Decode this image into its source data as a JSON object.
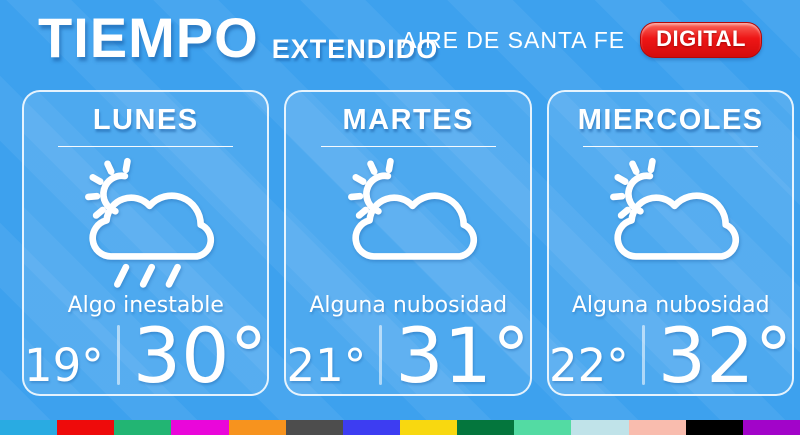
{
  "header": {
    "title": "TIEMPO",
    "subtitle": "EXTENDIDO",
    "brand": "AIRE DE SANTA FE",
    "badge": "DIGITAL"
  },
  "colors": {
    "background": "#3da1ee",
    "badge_red": "#e01010",
    "card_border": "#ffffff"
  },
  "cards": [
    {
      "day": "LUNES",
      "icon": "sun-cloud-rain-icon",
      "description": "Algo inestable",
      "temp_min": "19°",
      "temp_max": "30°"
    },
    {
      "day": "MARTES",
      "icon": "sun-cloud-icon",
      "description": "Alguna nubosidad",
      "temp_min": "21°",
      "temp_max": "31°"
    },
    {
      "day": "MIERCOLES",
      "icon": "sun-cloud-icon",
      "description": "Alguna nubosidad",
      "temp_min": "22°",
      "temp_max": "32°"
    }
  ],
  "footer_palette": [
    "#29abe2",
    "#ee0b0b",
    "#22b573",
    "#ea06da",
    "#f7931e",
    "#4d4d4d",
    "#3d3df2",
    "#f8d810",
    "#04763d",
    "#53dba3",
    "#c0e3e9",
    "#f9bcae",
    "#000000",
    "#a204c9"
  ]
}
